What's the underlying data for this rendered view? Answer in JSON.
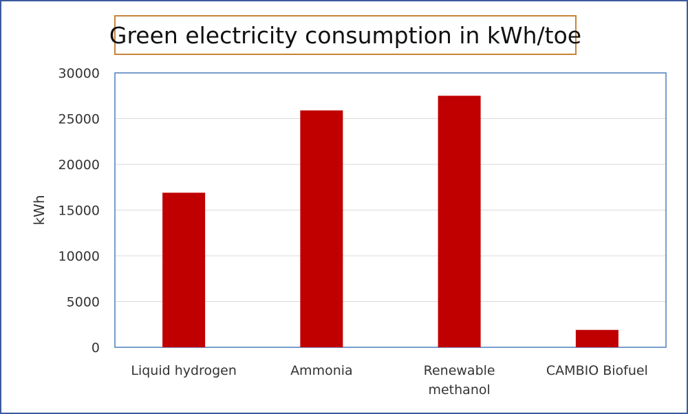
{
  "chart_data": {
    "type": "bar",
    "title": "Green electricity consumption in kWh/toe",
    "xlabel": "",
    "ylabel": "kWh",
    "categories": [
      [
        "Liquid hydrogen"
      ],
      [
        "Ammonia"
      ],
      [
        "Renewable",
        "methanol"
      ],
      [
        "CAMBIO Biofuel"
      ]
    ],
    "values": [
      16900,
      25900,
      27500,
      1900
    ],
    "ylim": [
      0,
      30000
    ],
    "yticks": [
      0,
      5000,
      10000,
      15000,
      20000,
      25000,
      30000
    ],
    "grid": true,
    "legend": "none",
    "colors": {
      "bar": "#c00000",
      "gridline": "#d9d9d9",
      "plot_border": "#4a7ebb",
      "title_border": "#c8833a",
      "frame_border": "#3b5aa0"
    }
  }
}
